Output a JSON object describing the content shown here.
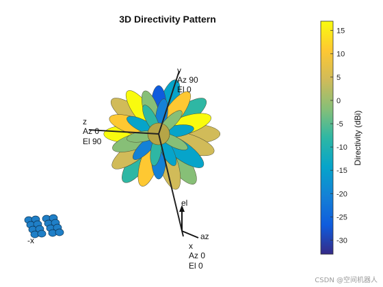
{
  "chart_data": {
    "type": "3d-pattern",
    "title": "3D Directivity Pattern",
    "colorbar": {
      "label": "Directivity (dBi)",
      "range": [
        -33,
        17
      ],
      "ticks": [
        15,
        10,
        5,
        0,
        -5,
        -10,
        -15,
        -20,
        -25,
        -30
      ],
      "colormap": [
        "#352a87",
        "#0f5cdd",
        "#1481d6",
        "#06a4ca",
        "#2eb7a4",
        "#87bf77",
        "#d1bb59",
        "#fec832",
        "#f9fb0e"
      ]
    },
    "axis_labels": {
      "y": {
        "axis": "y",
        "az": "Az 90",
        "el": "El 0"
      },
      "z": {
        "axis": "z",
        "az": "Az 0",
        "el": "El 90"
      },
      "x": {
        "axis": "x",
        "az": "Az 0",
        "el": "El 0"
      }
    },
    "triad": {
      "el": "el",
      "az": "az"
    },
    "array_label": "-x",
    "lobes": [
      {
        "angle": 0,
        "length": 0.95,
        "level": 6
      },
      {
        "angle": 18,
        "length": 0.85,
        "level": 8
      },
      {
        "angle": 36,
        "length": 0.9,
        "level": 4
      },
      {
        "angle": 54,
        "length": 0.8,
        "level": 7
      },
      {
        "angle": 72,
        "length": 0.88,
        "level": 3
      },
      {
        "angle": 90,
        "length": 0.75,
        "level": 1
      },
      {
        "angle": 108,
        "length": 0.7,
        "level": 5
      },
      {
        "angle": 126,
        "length": 0.82,
        "level": 8
      },
      {
        "angle": 144,
        "length": 0.9,
        "level": 6
      },
      {
        "angle": 162,
        "length": 0.8,
        "level": 7
      },
      {
        "angle": 180,
        "length": 0.85,
        "level": 8
      },
      {
        "angle": 198,
        "length": 0.75,
        "level": 5
      },
      {
        "angle": 216,
        "length": 0.88,
        "level": 6
      },
      {
        "angle": 234,
        "length": 0.92,
        "level": 4
      },
      {
        "angle": 252,
        "length": 0.85,
        "level": 7
      },
      {
        "angle": 270,
        "length": 0.7,
        "level": 2
      },
      {
        "angle": 288,
        "length": 0.9,
        "level": 6
      },
      {
        "angle": 306,
        "length": 0.95,
        "level": 5
      },
      {
        "angle": 324,
        "length": 0.85,
        "level": 3
      },
      {
        "angle": 342,
        "length": 0.9,
        "level": 6
      },
      {
        "angle": 9,
        "length": 0.55,
        "level": 3
      },
      {
        "angle": 45,
        "length": 0.5,
        "level": 5
      },
      {
        "angle": 81,
        "length": 0.55,
        "level": 2
      },
      {
        "angle": 117,
        "length": 0.5,
        "level": 4
      },
      {
        "angle": 153,
        "length": 0.55,
        "level": 3
      },
      {
        "angle": 189,
        "length": 0.5,
        "level": 5
      },
      {
        "angle": 225,
        "length": 0.55,
        "level": 2
      },
      {
        "angle": 261,
        "length": 0.5,
        "level": 4
      },
      {
        "angle": 297,
        "length": 0.55,
        "level": 3
      },
      {
        "angle": 333,
        "length": 0.5,
        "level": 5
      }
    ]
  },
  "watermark": "CSDN @空间机器人"
}
